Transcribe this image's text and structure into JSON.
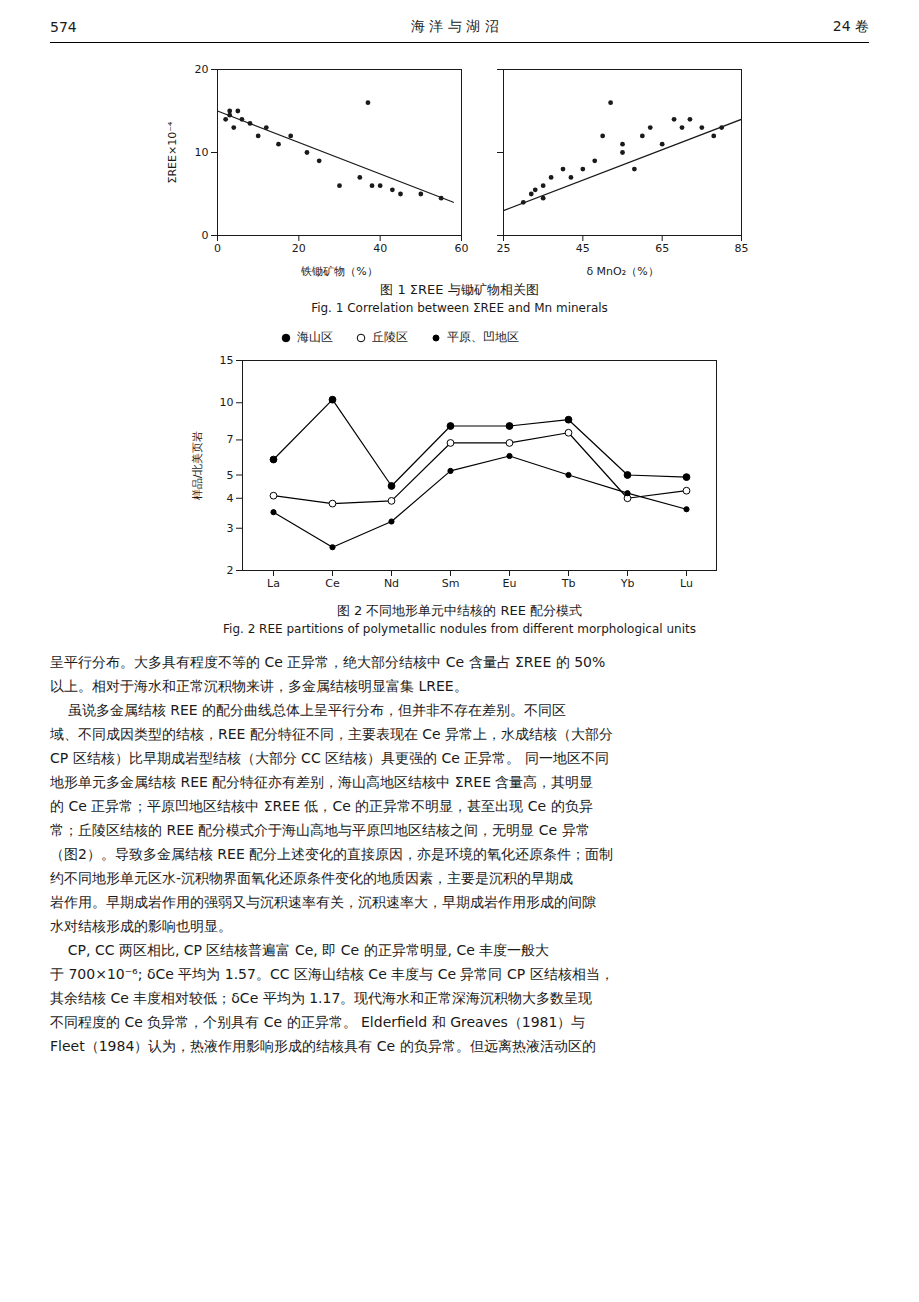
{
  "header": [
    "574",
    "海  洋  与  湖  沼",
    "24 卷"
  ],
  "chart_data": [
    {
      "type": "scatter",
      "title": "图 1   ΣREE 与锄矿物相关图",
      "subtitle": "Fig. 1   Correlation between ΣREE  and Mn minerals",
      "xlabel": "铁锄矿物（%）",
      "ylabel": "ΣREE×10⁻⁴",
      "xlim": [
        0,
        60
      ],
      "ylim": [
        0,
        20
      ],
      "xticks": [
        0,
        20,
        40,
        60
      ],
      "yticks": [
        0,
        10,
        20
      ],
      "grid": false,
      "series": [
        {
          "type": "scatter",
          "x": [
            2,
            3,
            3,
            4,
            5,
            6,
            8,
            10,
            12,
            15,
            18,
            22,
            25,
            30,
            35,
            37,
            38,
            40,
            43,
            45,
            50,
            55
          ],
          "values": [
            14,
            15,
            14.5,
            13,
            15,
            14,
            13.5,
            12,
            13,
            11,
            12,
            10,
            9,
            6,
            7,
            16,
            6,
            6,
            5.5,
            5,
            5,
            4.5
          ]
        },
        {
          "type": "line",
          "x": [
            0,
            58
          ],
          "values": [
            15,
            4
          ]
        }
      ]
    },
    {
      "type": "scatter",
      "xlabel": "δ MnO₂（%）",
      "xlim": [
        25,
        85
      ],
      "ylim": [
        0,
        20
      ],
      "xticks": [
        25,
        45,
        65,
        85
      ],
      "yticks": [
        0,
        10,
        20
      ],
      "tick_labels": "x",
      "grid": false,
      "series": [
        {
          "type": "scatter",
          "x": [
            30,
            32,
            33,
            35,
            35,
            37,
            40,
            42,
            45,
            48,
            50,
            52,
            55,
            55,
            58,
            60,
            62,
            65,
            68,
            70,
            72,
            75,
            78,
            80
          ],
          "values": [
            4,
            5,
            5.5,
            4.5,
            6,
            7,
            8,
            7,
            8,
            9,
            12,
            16,
            10,
            11,
            8,
            12,
            13,
            11,
            14,
            13,
            14,
            13,
            12,
            13
          ]
        },
        {
          "type": "line",
          "x": [
            25,
            85
          ],
          "values": [
            3,
            14
          ]
        }
      ]
    },
    {
      "type": "line",
      "title": "图 2   不同地形单元中结核的 REE 配分模式",
      "subtitle": "Fig. 2   REE partitions of polymetallic nodules from different morphological units",
      "categories": [
        "La",
        "Ce",
        "Nd",
        "Sm",
        "Eu",
        "Tb",
        "Yb",
        "Lu"
      ],
      "ylabel": "样品/北美页岩",
      "log": "y",
      "ylim": [
        2,
        15
      ],
      "yticks": [
        2,
        3,
        4,
        5,
        7,
        10,
        15
      ],
      "grid": false,
      "legend": "top",
      "series": [
        {
          "name": "海山区",
          "values": [
            5.8,
            10.3,
            4.5,
            8.0,
            8.0,
            8.5,
            5.0,
            4.9
          ],
          "color": "black",
          "marker": "circle"
        },
        {
          "name": "丘陵区",
          "values": [
            4.1,
            3.8,
            3.9,
            6.8,
            6.8,
            7.5,
            4.0,
            4.3
          ],
          "color": "black",
          "marker": "open_circle"
        },
        {
          "name": "平原、凹地区",
          "values": [
            3.5,
            2.5,
            3.2,
            5.2,
            6.0,
            5.0,
            4.2,
            3.6
          ],
          "color": "black",
          "marker": "small_circle"
        }
      ]
    }
  ],
  "body_text": [
    "呈平行分布。大多具有程度不等的 Ce 正异常，绝大部分结核中 Ce 含量占 ΣREE 的 50%",
    "以上。相对于海水和正常沉积物来讲，多金属结核明显富集 LREE。",
    "    虽说多金属结核 REE 的配分曲线总体上呈平行分布，但并非不存在差别。不同区",
    "域、不同成因类型的结核，REE 配分特征不同，主要表现在 Ce 异常上，水成结核（大部分",
    "CP 区结核）比早期成岩型结核（大部分 CC 区结核）具更强的 Ce 正异常。 同一地区不同",
    "地形单元多金属结核 REE 配分特征亦有差别，海山高地区结核中 ΣREE 含量高，其明显",
    "的 Ce 正异常；平原凹地区结核中 ΣREE 低，Ce 的正异常不明显，甚至出现 Ce 的负异",
    "常；丘陵区结核的 REE 配分模式介于海山高地与平原凹地区结核之间，无明显 Ce 异常",
    "（图2）。导致多金属结核 REE 配分上述变化的直接原因，亦是环境的氧化还原条件；面制",
    "约不同地形单元区水-沉积物界面氧化还原条件变化的地质因素，主要是沉积的早期成",
    "岩作用。早期成岩作用的强弱又与沉积速率有关，沉积速率大，早期成岩作用形成的间隙",
    "水对结核形成的影响也明显。",
    "    CP, CC 两区相比, CP 区结核普遍富 Ce, 即 Ce 的正异常明显, Ce 丰度一般大",
    "于 700×10⁻⁶; δCe 平均为 1.57。CC 区海山结核 Ce 丰度与 Ce 异常同 CP 区结核相当，",
    "其余结核 Ce 丰度相对较低；δCe 平均为 1.17。现代海水和正常深海沉积物大多数呈现",
    "不同程度的 Ce 负异常，个别具有 Ce 的正异常。 Elderfield 和 Greaves（1981）与",
    "Fleet（1984）认为，热液作用影响形成的结核具有 Ce 的负异常。但远离热液活动区的"
  ]
}
